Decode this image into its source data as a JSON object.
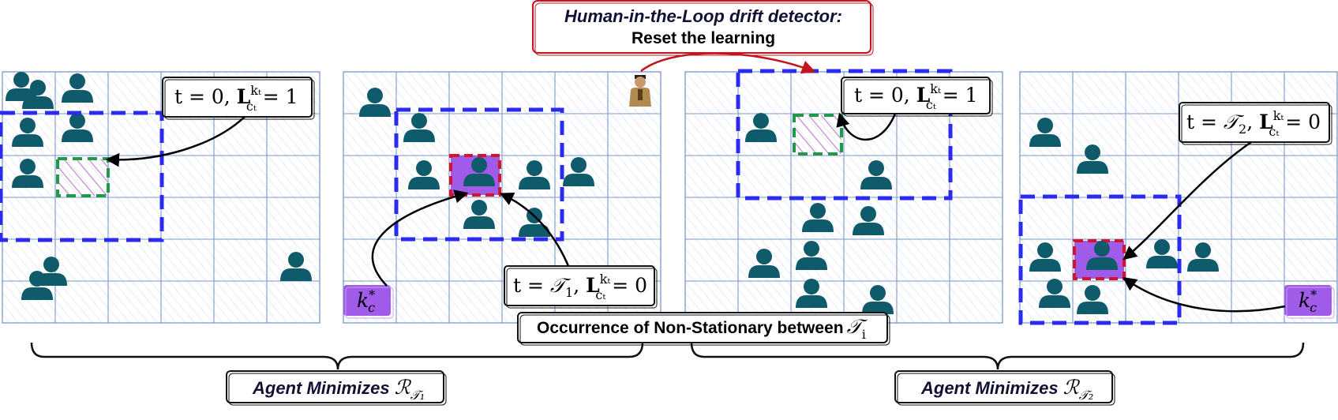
{
  "banner": {
    "line1": "Human-in-the-Loop drift detector:",
    "line2": "Reset the learning"
  },
  "panels": [
    {
      "callout": {
        "lhs": "t = 0, ",
        "L": "L",
        "sup": "kₜ",
        "sub": "cₜ",
        "rhs": " = 1"
      }
    },
    {
      "callout": {
        "lhs": "t = ",
        "T": "𝒯",
        "Tsub": "1",
        "mid": ", ",
        "L": "L",
        "sup": "kₜ",
        "sub": "cₜ",
        "rhs": " = 0"
      },
      "badge": {
        "main": "k",
        "sup": "*",
        "sub": "c"
      }
    },
    {
      "callout": {
        "lhs": "t = 0, ",
        "L": "L",
        "sup": "kₜ",
        "sub": "cₜ",
        "rhs": " = 1"
      }
    },
    {
      "callout": {
        "lhs": "t = ",
        "T": "𝒯",
        "Tsub": "2",
        "mid": ", ",
        "L": "L",
        "sup": "kₜ",
        "sub": "cₜ",
        "rhs": " = 0"
      },
      "badge": {
        "main": "k",
        "sup": "*",
        "sub": "c"
      }
    }
  ],
  "middle_label": {
    "text": "Occurrence of Non-Stationary between",
    "T": "𝒯",
    "sub": "i"
  },
  "brace_labels": [
    {
      "text": "Agent Minimizes ",
      "R": "ℛ",
      "sub": "𝒯₁"
    },
    {
      "text": "Agent Minimizes ",
      "R": "ℛ",
      "sub": "𝒯₂"
    }
  ],
  "colors": {
    "grid_line": "#6f8fc4",
    "hatch": "#c9d6ee",
    "person": "#0f5a6b",
    "blue_dash": "#2b2bf0",
    "green_dash": "#1f9a4a",
    "red_dash": "#d4142a",
    "purple_fill": "#a05be8",
    "banner_border": "#c4141e",
    "arrow_red": "#c4141e"
  }
}
